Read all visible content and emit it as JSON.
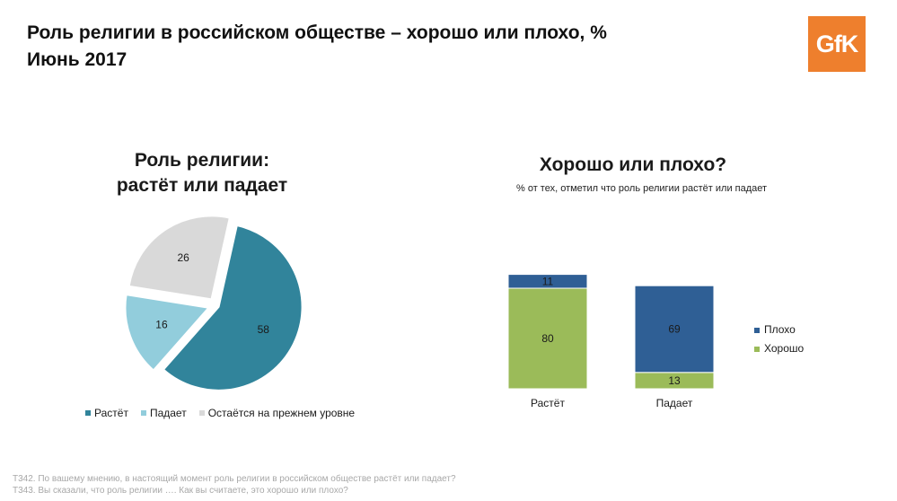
{
  "header": {
    "title_line1": "Роль религии в российском обществе – хорошо или плохо, %",
    "title_line2": "Июнь 2017",
    "logo_text": "GfK",
    "logo_color": "#ee7f2d"
  },
  "pie_chart_title": {
    "line1": "Роль религии:",
    "line2": "растёт или падает"
  },
  "bar_chart_title": "Хорошо или плохо?",
  "bar_chart_subtitle": "% от тех, отметил что роль религии растёт или падает",
  "footnote": {
    "line1": "Т342. По вашему мнению, в настоящий момент роль религии в российском обществе растёт или падает?",
    "line2": "Т343. Вы сказали, что роль религии …. Как вы считаете, это хорошо или плохо?"
  },
  "chart_data": [
    {
      "type": "pie",
      "title": "Роль религии: растёт или падает",
      "slices": [
        {
          "label": "Растёт",
          "value": 58,
          "color": "#31849b"
        },
        {
          "label": "Падает",
          "value": 16,
          "color": "#92cddc"
        },
        {
          "label": "Остаётся на прежнем уровне",
          "value": 26,
          "color": "#d9d9d9"
        }
      ],
      "legend_position": "bottom"
    },
    {
      "type": "bar",
      "stacked": true,
      "title": "Хорошо или плохо?",
      "categories": [
        "Растёт",
        "Падает"
      ],
      "series": [
        {
          "name": "Хорошо",
          "values": [
            80,
            13
          ],
          "color": "#9bbb59"
        },
        {
          "name": "Плохо",
          "values": [
            11,
            69
          ],
          "color": "#2f5f95"
        }
      ],
      "legend_position": "right"
    }
  ]
}
